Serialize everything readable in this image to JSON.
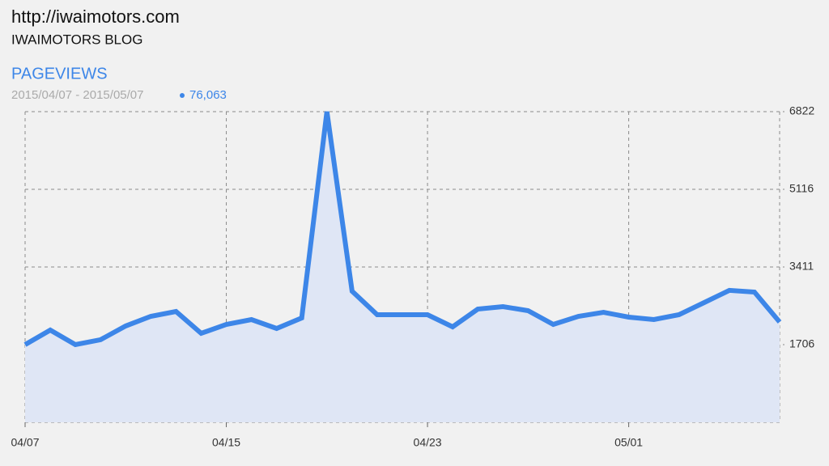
{
  "header": {
    "url": "http://iwaimotors.com",
    "blog": "IWAIMOTORS BLOG"
  },
  "chart_data": {
    "type": "area",
    "title": "PAGEVIEWS",
    "subtitle": "2015/04/07 - 2015/05/07",
    "total": "76,063",
    "categories": [
      "04/07",
      null,
      null,
      null,
      null,
      null,
      null,
      null,
      "04/15",
      null,
      null,
      null,
      null,
      null,
      null,
      null,
      "04/23",
      null,
      null,
      null,
      null,
      null,
      null,
      null,
      "05/01",
      null,
      null,
      null,
      null,
      null,
      null
    ],
    "values": [
      1706,
      2026,
      1706,
      1813,
      2115,
      2328,
      2434,
      1955,
      2150,
      2257,
      2061,
      2292,
      6822,
      2879,
      2363,
      2363,
      2363,
      2097,
      2488,
      2541,
      2452,
      2150,
      2328,
      2417,
      2310,
      2257,
      2363,
      2630,
      2897,
      2861,
      2203
    ],
    "color": "#3d86e8",
    "fill_color": "#dfe6f5",
    "ylim": [
      0,
      6822
    ],
    "yticks": [
      1706,
      3411,
      5116,
      6822
    ],
    "y_axis_side": "right",
    "grid": true
  }
}
